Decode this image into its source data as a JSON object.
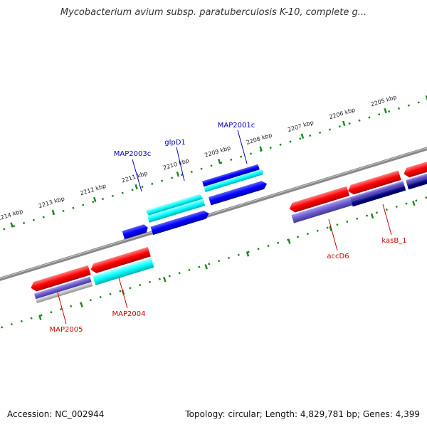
{
  "title": "Mycobacterium avium subsp. paratuberculosis K-10, complete g...",
  "footer": {
    "accession": "Accession: NC_002944",
    "stats": "Topology: circular; Length: 4,829,781 bp; Genes: 4,399"
  },
  "scale_labels": [
    "2205 kbp",
    "2206 kbp",
    "2207 kbp",
    "2208 kbp",
    "2209 kbp",
    "2210 kbp",
    "2211 kbp",
    "2212 kbp",
    "2213 kbp",
    "2214 kbp"
  ],
  "gene_labels": {
    "MAP2003c": "MAP2003c",
    "glpD1": "glpD1",
    "MAP2001c": "MAP2001c",
    "accD6": "accD6",
    "kasB_1": "kasB_1",
    "MAP2005": "MAP2005",
    "MAP2004": "MAP2004"
  },
  "colors": {
    "backbone": "#888888",
    "gene_red": "#ff0000",
    "gene_cyan": "#00ffff",
    "gene_blue": "#0000ff",
    "gene_green": "#00ee88",
    "cog_purple": "#6a5acd",
    "cog_navy": "#000080",
    "cog_gray": "#bbbbbb",
    "tick_green": "#228822",
    "label_blue": "#0000bb",
    "label_red": "#cc0000"
  }
}
